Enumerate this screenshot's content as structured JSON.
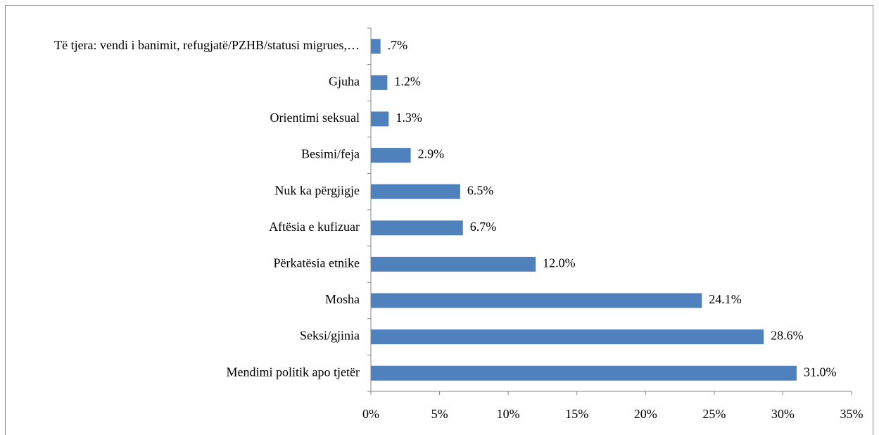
{
  "chart_data": {
    "type": "bar",
    "orientation": "horizontal",
    "categories": [
      "Të tjera: vendi i banimit, refugjatë/PZHB/statusi migrues,…",
      "Gjuha",
      "Orientimi seksual",
      "Besimi/feja",
      "Nuk ka përgjigje",
      "Aftësia e kufizuar",
      "Përkatësia etnike",
      "Mosha",
      "Seksi/gjinia",
      "Mendimi politik apo tjetër"
    ],
    "values": [
      0.7,
      1.2,
      1.3,
      2.9,
      6.5,
      6.7,
      12.0,
      24.1,
      28.6,
      31.0
    ],
    "value_labels": [
      ".7%",
      "1.2%",
      "1.3%",
      "2.9%",
      "6.5%",
      "6.7%",
      "12.0%",
      "24.1%",
      "28.6%",
      "31.0%"
    ],
    "color": "#4f81bd",
    "xlim": [
      0,
      35
    ],
    "xticks": [
      {
        "value": 0,
        "label": "0%"
      },
      {
        "value": 5,
        "label": "5%"
      },
      {
        "value": 10,
        "label": "10%"
      },
      {
        "value": 15,
        "label": "15%"
      },
      {
        "value": 20,
        "label": "20%"
      },
      {
        "value": 25,
        "label": "25%"
      },
      {
        "value": 30,
        "label": "30%"
      },
      {
        "value": 35,
        "label": "35%"
      }
    ]
  }
}
